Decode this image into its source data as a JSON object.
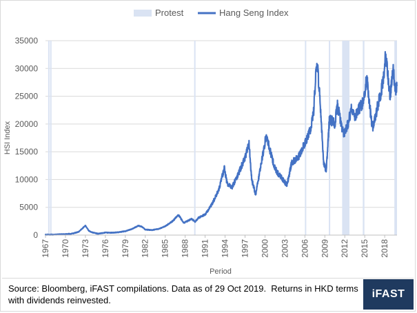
{
  "chart_data": {
    "type": "line",
    "title": "",
    "xlabel": "Period",
    "ylabel": "HSI Index",
    "ylim": [
      0,
      35000
    ],
    "y_ticks": [
      "0",
      "5000",
      "10000",
      "15000",
      "20000",
      "25000",
      "30000",
      "35000"
    ],
    "x_range": [
      1967,
      2019.85
    ],
    "x_ticks": [
      "1967",
      "1970",
      "1973",
      "1976",
      "1979",
      "1982",
      "1985",
      "1988",
      "1991",
      "1994",
      "1997",
      "2000",
      "2003",
      "2006",
      "2009",
      "2012",
      "2015",
      "2018"
    ],
    "legend_position": "top",
    "grid": "horizontal",
    "series": [
      {
        "name": "Hang Seng Index",
        "color": "#4472c4",
        "points": [
          [
            1967.0,
            70
          ],
          [
            1968.0,
            80
          ],
          [
            1969.0,
            130
          ],
          [
            1970.0,
            170
          ],
          [
            1971.0,
            250
          ],
          [
            1972.0,
            600
          ],
          [
            1973.0,
            1700
          ],
          [
            1973.5,
            800
          ],
          [
            1974.0,
            500
          ],
          [
            1974.9,
            250
          ],
          [
            1976.0,
            450
          ],
          [
            1977.0,
            430
          ],
          [
            1978.0,
            520
          ],
          [
            1979.0,
            700
          ],
          [
            1980.0,
            1100
          ],
          [
            1981.0,
            1700
          ],
          [
            1981.5,
            1500
          ],
          [
            1982.0,
            1000
          ],
          [
            1983.0,
            900
          ],
          [
            1984.0,
            1100
          ],
          [
            1985.0,
            1600
          ],
          [
            1986.0,
            2400
          ],
          [
            1987.0,
            3600
          ],
          [
            1987.8,
            2200
          ],
          [
            1989.0,
            2900
          ],
          [
            1989.5,
            2400
          ],
          [
            1990.0,
            3100
          ],
          [
            1991.0,
            3700
          ],
          [
            1992.0,
            5500
          ],
          [
            1993.0,
            8000
          ],
          [
            1993.9,
            12000
          ],
          [
            1994.3,
            9300
          ],
          [
            1995.0,
            8500
          ],
          [
            1996.0,
            11000
          ],
          [
            1997.0,
            14000
          ],
          [
            1997.6,
            16500
          ],
          [
            1998.0,
            10000
          ],
          [
            1998.6,
            7300
          ],
          [
            1999.3,
            12000
          ],
          [
            1999.9,
            16000
          ],
          [
            2000.2,
            18000
          ],
          [
            2000.8,
            15000
          ],
          [
            2001.5,
            12000
          ],
          [
            2002.0,
            11000
          ],
          [
            2002.7,
            10000
          ],
          [
            2003.3,
            9000
          ],
          [
            2004.0,
            13000
          ],
          [
            2005.0,
            14000
          ],
          [
            2006.0,
            16500
          ],
          [
            2006.8,
            19000
          ],
          [
            2007.3,
            22000
          ],
          [
            2007.8,
            31700
          ],
          [
            2008.3,
            24000
          ],
          [
            2008.8,
            13000
          ],
          [
            2009.2,
            11500
          ],
          [
            2009.7,
            21000
          ],
          [
            2010.5,
            20000
          ],
          [
            2010.9,
            23500
          ],
          [
            2011.8,
            18000
          ],
          [
            2012.5,
            20000
          ],
          [
            2013.0,
            23000
          ],
          [
            2013.5,
            21000
          ],
          [
            2014.0,
            22500
          ],
          [
            2014.8,
            24000
          ],
          [
            2015.3,
            28500
          ],
          [
            2015.9,
            21500
          ],
          [
            2016.2,
            19000
          ],
          [
            2016.9,
            23000
          ],
          [
            2017.5,
            26000
          ],
          [
            2018.0,
            30000
          ],
          [
            2018.1,
            33200
          ],
          [
            2018.8,
            25000
          ],
          [
            2019.3,
            30000
          ],
          [
            2019.6,
            25500
          ],
          [
            2019.83,
            26800
          ]
        ]
      },
      {
        "name": "Protest",
        "color": "#dae3f3",
        "ranges": [
          [
            1967.4,
            1967.55
          ],
          [
            1967.7,
            1967.85
          ],
          [
            1989.35,
            1989.5
          ],
          [
            2006.0,
            2006.1
          ],
          [
            2009.6,
            2009.7
          ],
          [
            2011.6,
            2012.7
          ],
          [
            2014.7,
            2014.95
          ],
          [
            2019.45,
            2019.85
          ]
        ]
      }
    ]
  },
  "footer": {
    "source": "Source: Bloomberg, iFAST compilations. Data as of 29 Oct 2019.  Returns in HKD terms\nwith dividends reinvested.",
    "logo": "iFAST"
  }
}
